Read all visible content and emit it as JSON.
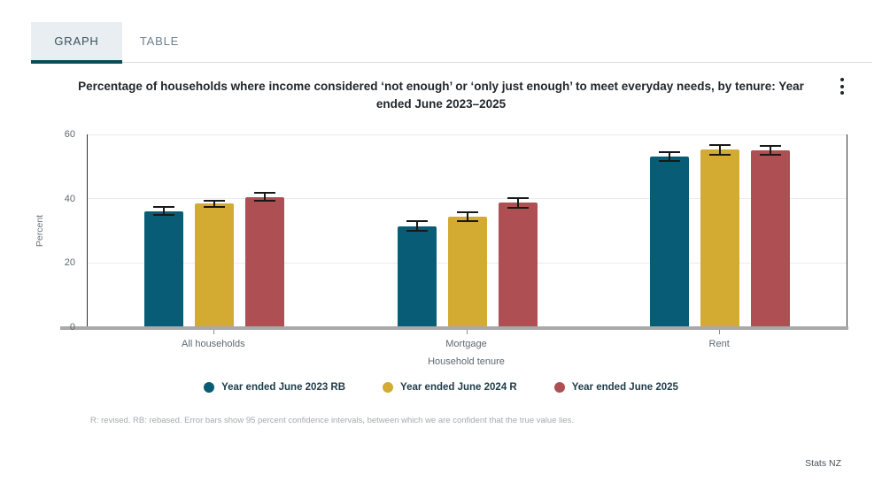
{
  "tabs": {
    "graph_label": "GRAPH",
    "table_label": "TABLE"
  },
  "title": "Percentage of households where income considered ‘not enough’ or ‘only just enough’ to meet everyday needs, by tenure: Year ended June 2023–2025",
  "menu": {
    "icon": "kebab-menu-icon"
  },
  "chart_data": {
    "type": "bar",
    "categories": [
      "All households",
      "Mortgage",
      "Rent"
    ],
    "series": [
      {
        "name": "Year ended June 2023 RB",
        "color": "#095c75",
        "values": [
          36.1,
          31.4,
          53.2
        ],
        "error_margins": [
          1.2,
          1.5,
          1.4
        ]
      },
      {
        "name": "Year ended June 2024 R",
        "color": "#d3ab32",
        "values": [
          38.4,
          34.4,
          55.3
        ],
        "error_margins": [
          1.0,
          1.4,
          1.5
        ]
      },
      {
        "name": "Year ended June 2025",
        "color": "#ae4f53",
        "values": [
          40.5,
          38.7,
          55.0
        ],
        "error_margins": [
          1.2,
          1.5,
          1.4
        ]
      }
    ],
    "xlabel": "Household tenure",
    "ylabel": "Percent",
    "ylim": [
      0,
      60
    ],
    "yticks": [
      0,
      20,
      40,
      60
    ],
    "grid": true,
    "legend_position": "bottom",
    "error_bars": "95 percent confidence intervals"
  },
  "footnote": "R: revised. RB: rebased. Error bars show 95 percent confidence intervals, between which we are confident that the true value lies.",
  "brand": "Stats NZ",
  "colors": {
    "tab_active_bg": "#e8eef1",
    "tab_underline": "#0d4b59",
    "axis_dark": "#303030",
    "axis_base": "#a9a9a9",
    "gridline": "#ebebeb"
  }
}
